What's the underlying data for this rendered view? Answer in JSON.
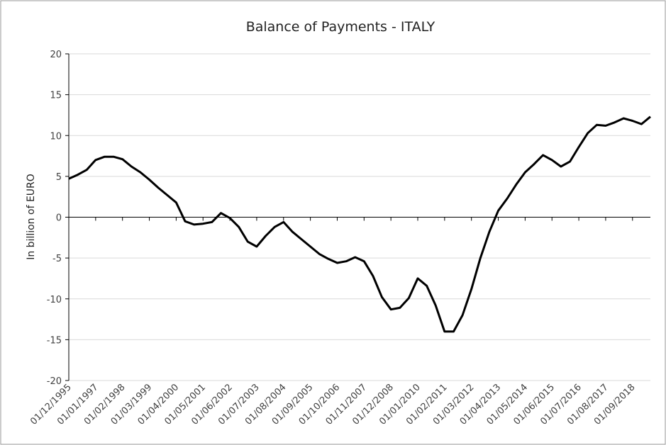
{
  "chart_data": {
    "type": "line",
    "title": "Balance of Payments - ITALY",
    "y_label": "In billion of EURO",
    "categories": [
      "01/12/1995",
      null,
      null,
      "01/01/1997",
      null,
      null,
      "01/02/1998",
      null,
      null,
      "01/03/1999",
      null,
      null,
      "01/04/2000",
      null,
      null,
      "01/05/2001",
      null,
      null,
      "01/06/2002",
      null,
      null,
      "01/07/2003",
      null,
      null,
      "01/08/2004",
      null,
      null,
      "01/09/2005",
      null,
      null,
      "01/10/2006",
      null,
      null,
      "01/11/2007",
      null,
      null,
      "01/12/2008",
      null,
      null,
      "01/01/2010",
      null,
      null,
      "01/02/2011",
      null,
      null,
      "01/03/2012",
      null,
      null,
      "01/04/2013",
      null,
      null,
      "01/05/2014",
      null,
      null,
      "01/06/2015",
      null,
      null,
      "01/07/2016",
      null,
      null,
      "01/08/2017",
      null,
      null,
      "01/09/2018",
      null,
      null
    ],
    "series": [
      {
        "name": "Balance of Payments",
        "color": "#000000",
        "values": [
          4.7,
          5.2,
          5.8,
          7.0,
          7.4,
          7.4,
          7.1,
          6.2,
          5.5,
          4.6,
          3.6,
          2.7,
          1.8,
          -0.5,
          -0.9,
          -0.8,
          -0.6,
          0.5,
          -0.1,
          -1.2,
          -3.0,
          -3.6,
          -2.3,
          -1.2,
          -0.6,
          -1.8,
          -2.7,
          -3.6,
          -4.5,
          -5.1,
          -5.6,
          -5.4,
          -4.9,
          -5.4,
          -7.2,
          -9.8,
          -11.3,
          -11.1,
          -9.9,
          -7.5,
          -8.4,
          -10.8,
          -14.0,
          -14.0,
          -12.0,
          -8.8,
          -5.0,
          -1.8,
          0.8,
          2.3,
          4.0,
          5.5,
          6.5,
          7.6,
          7.0,
          6.2,
          6.8,
          8.6,
          10.3,
          11.3,
          11.2,
          11.6,
          12.1,
          11.8,
          11.4,
          12.3
        ]
      }
    ],
    "ylim": [
      -20,
      20
    ],
    "yticks": [
      -20,
      -15,
      -10,
      -5,
      0,
      5,
      10,
      15,
      20
    ],
    "grid": true
  }
}
